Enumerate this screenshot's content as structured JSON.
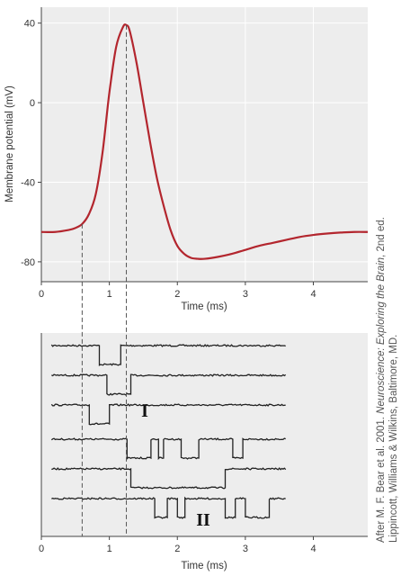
{
  "credit": {
    "line1_a": "After M. F. Bear et al. 2001. ",
    "line1_b": "Neuroscience: Exploring the Brain",
    "line1_c": ", 2nd ed.",
    "line2": "Lippincott, Williams & Wilkins, Baltimore, MD."
  },
  "colors": {
    "trace": "#b3262e",
    "panel_bg": "#ededed",
    "grid": "#ffffff",
    "dashed": "#555555",
    "axis": "#444444"
  },
  "chart_data": [
    {
      "type": "line",
      "title": "",
      "xlabel": "Time (ms)",
      "ylabel": "Membrane potential (mV)",
      "xlim": [
        0,
        4.8
      ],
      "ylim": [
        -90,
        48
      ],
      "xticks": [
        0,
        1,
        2,
        3,
        4
      ],
      "yticks": [
        40,
        0,
        -40,
        -80
      ],
      "grid": true,
      "series": [
        {
          "x": [
            0,
            0.2,
            0.4,
            0.5,
            0.6,
            0.7,
            0.8,
            0.9,
            1.0,
            1.1,
            1.2,
            1.25,
            1.3,
            1.4,
            1.5,
            1.6,
            1.7,
            1.8,
            1.9,
            2.0,
            2.1,
            2.2,
            2.3,
            2.4,
            2.6,
            2.8,
            3.0,
            3.2,
            3.4,
            3.6,
            3.8,
            4.0,
            4.2,
            4.4,
            4.6,
            4.8
          ],
          "y": [
            -65,
            -65,
            -64,
            -63,
            -61,
            -56,
            -46,
            -25,
            5,
            28,
            38,
            39,
            36,
            20,
            0,
            -20,
            -38,
            -52,
            -64,
            -72,
            -76,
            -78,
            -78.5,
            -78.5,
            -77.5,
            -76,
            -74,
            -72,
            -70.5,
            -69,
            -67.5,
            -66.5,
            -65.8,
            -65.3,
            -65,
            -65
          ]
        }
      ],
      "markers": [
        0.6,
        1.25
      ]
    },
    {
      "type": "line",
      "title": "",
      "xlabel": "Time (ms)",
      "xlim": [
        0,
        4.8
      ],
      "xticks": [
        0,
        1,
        2,
        3,
        4
      ],
      "grid": false,
      "groups": [
        "I",
        "II"
      ],
      "series": [
        {
          "group": "I",
          "open_intervals": [
            [
              0.85,
              1.15
            ]
          ]
        },
        {
          "group": "I",
          "open_intervals": [
            [
              0.95,
              1.3
            ]
          ]
        },
        {
          "group": "I",
          "open_intervals": [
            [
              0.7,
              1.0
            ]
          ]
        },
        {
          "group": "II",
          "open_intervals": [
            [
              1.25,
              1.6
            ],
            [
              1.72,
              1.78
            ],
            [
              2.05,
              2.3
            ],
            [
              2.8,
              2.95
            ]
          ]
        },
        {
          "group": "II",
          "open_intervals": [
            [
              1.3,
              2.7
            ]
          ]
        },
        {
          "group": "II",
          "open_intervals": [
            [
              1.65,
              1.85
            ],
            [
              2.0,
              2.1
            ],
            [
              2.7,
              2.85
            ],
            [
              3.0,
              3.35
            ]
          ]
        }
      ]
    }
  ]
}
